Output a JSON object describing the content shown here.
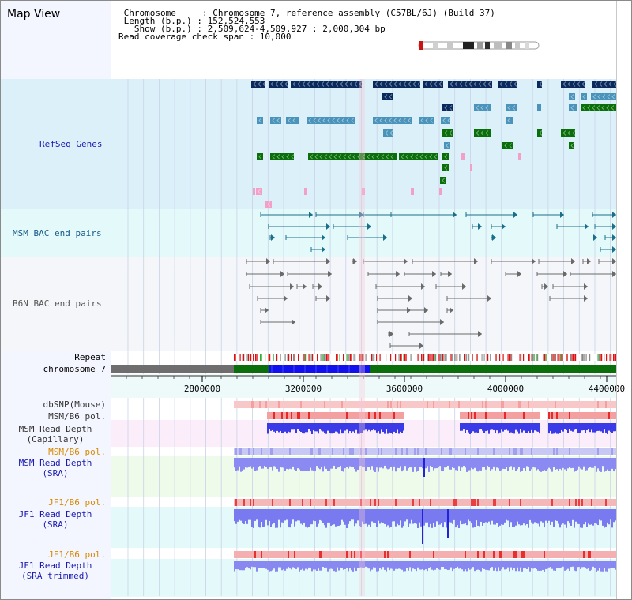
{
  "header": {
    "title": "Map View",
    "chromosome_line": " Chromosome     : Chromosome 7, reference assembly (C57BL/6J) (Build 37)",
    "length_line": " Length (b.p.) : 152,524,553",
    "show_line": "   Show (b.p.) : 2,509,624-4,509,927 : 2,000,304 bp",
    "coverage_line": "Read coverage check span : 10,000"
  },
  "tracks": {
    "refseq": "RefSeq Genes",
    "msm_bac": "MSM BAC end pairs",
    "b6n_bac": "B6N BAC end pairs",
    "repeat": "Repeat",
    "chromosome": "chromosome 7",
    "dbsnp": "dbSNP(Mouse)",
    "msm_b6_pol_1": "MSM/B6 pol.",
    "msm_read_depth_cap": "MSM Read Depth",
    "msm_read_depth_cap_sub": "(Capillary)",
    "msm_b6_pol_2": "MSM/B6 pol.",
    "msm_read_depth_sra": "MSM Read Depth",
    "msm_read_depth_sra_sub": "(SRA)",
    "jf1_b6_pol_1": "JF1/B6 pol.",
    "jf1_read_depth_sra": "JF1 Read Depth",
    "jf1_read_depth_sra_sub": "(SRA)",
    "jf1_b6_pol_2": "JF1/B6 pol.",
    "jf1_read_depth_trim": "JF1 Read Depth",
    "jf1_read_depth_trim_sub": "(SRA trimmed)"
  },
  "ruler": {
    "ticks": [
      "2800000",
      "3200000",
      "3600000",
      "4000000",
      "4400000"
    ]
  },
  "colors": {
    "refseq_bg": "#dcf0fa",
    "bac_bg": "#e4fafa",
    "b6n_bg": "#f4f6fa",
    "gene_navy": "#0a2a5e",
    "gene_teal": "#4a94bc",
    "gene_green": "#0a6e0a",
    "gene_pink": "#f2a0c8",
    "label_blue": "#1a1ab0",
    "label_orange": "#d88a00",
    "depth_blue": "#2222dd",
    "depth_light": "#8888f0"
  }
}
